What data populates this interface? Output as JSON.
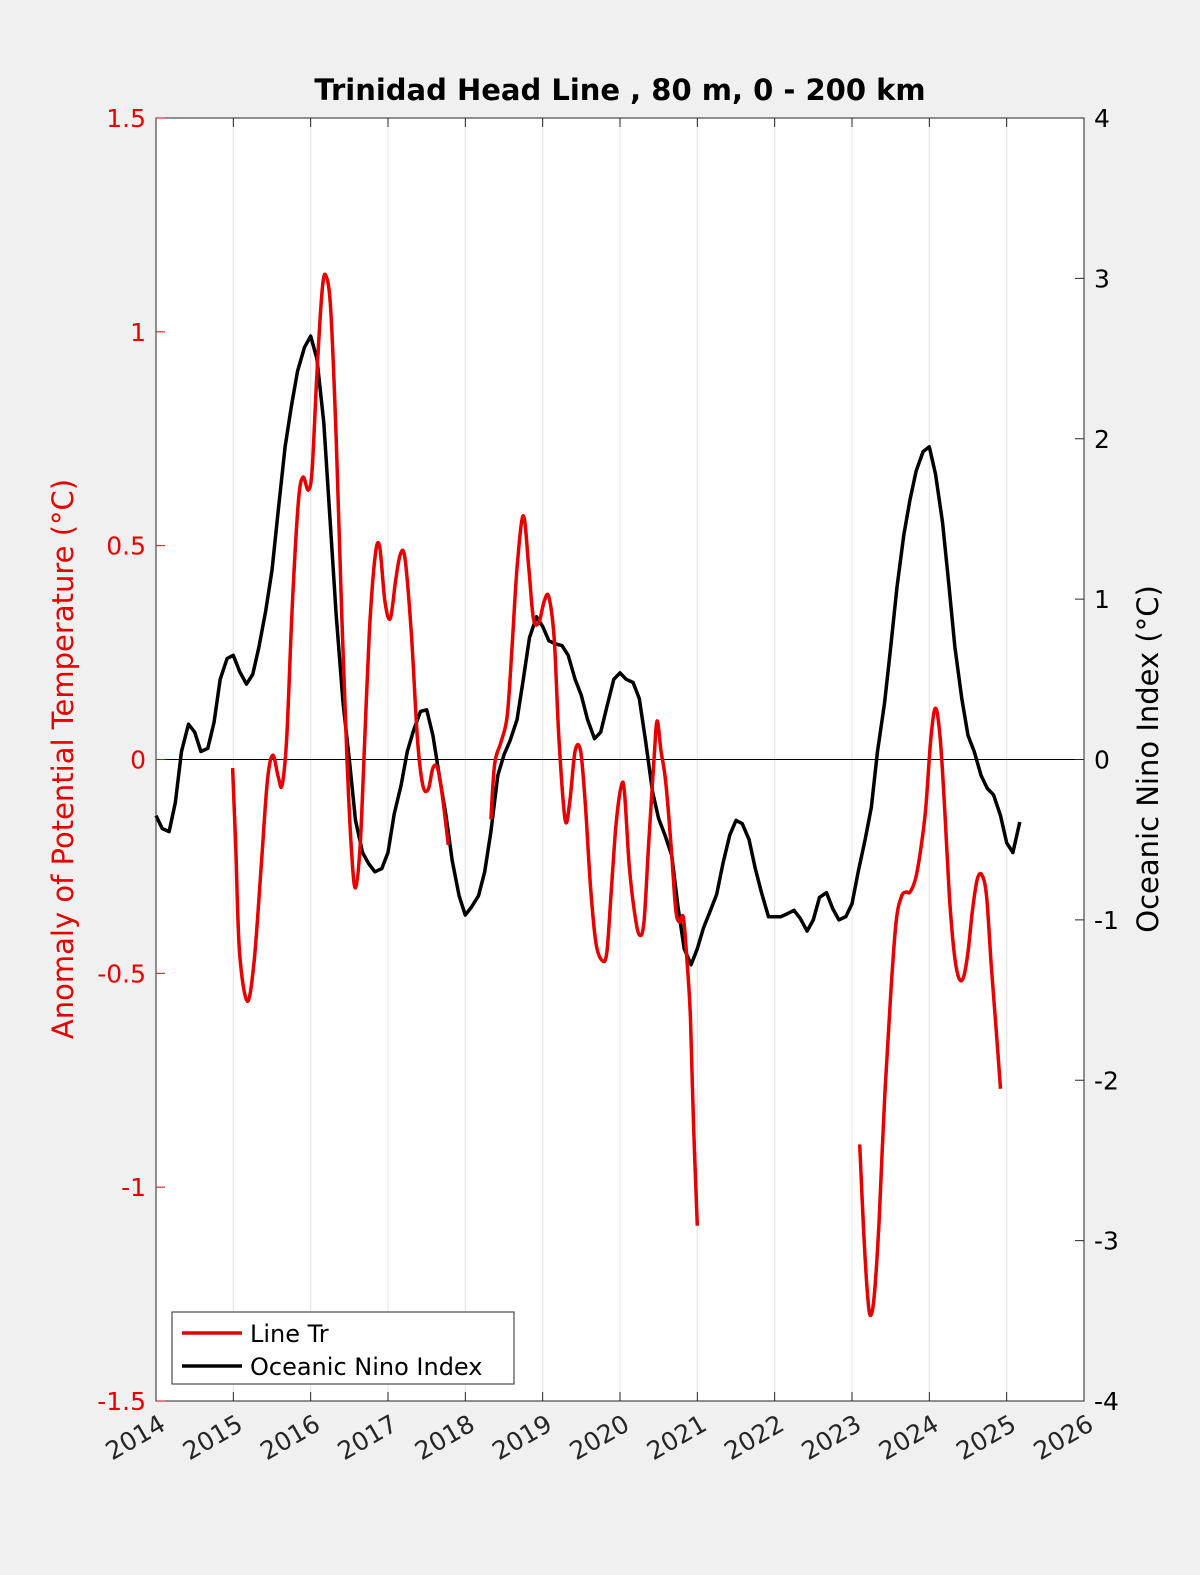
{
  "chart_data": {
    "type": "line",
    "title": "Trinidad Head Line , 80 m, 0 - 200 km",
    "xlabel": "",
    "ylabel_left": "Anomaly of Potential Temperature (°C)",
    "ylabel_right": "Oceanic Nino Index (°C)",
    "xlim": [
      2014,
      2026
    ],
    "ylim_left": [
      -1.5,
      1.5
    ],
    "ylim_right": [
      -4,
      4
    ],
    "x_ticks": [
      "2014",
      "2015",
      "2016",
      "2017",
      "2018",
      "2019",
      "2020",
      "2021",
      "2022",
      "2023",
      "2024",
      "2025",
      "2026"
    ],
    "y_ticks_left": [
      "1.5",
      "1",
      "0.5",
      "0",
      "-0.5",
      "-1",
      "-1.5"
    ],
    "y_ticks_right": [
      "4",
      "3",
      "2",
      "1",
      "0",
      "-1",
      "-2",
      "-3",
      "-4"
    ],
    "grid": "vertical",
    "legend_position": "bottom-left",
    "colors": {
      "line_tr": "#e60000",
      "oni": "#000000",
      "left_axis": "#e60000"
    },
    "series": [
      {
        "name": "Line Tr",
        "axis": "left",
        "segments": [
          [
            [
              2014.99,
              -0.02
            ],
            [
              2015.03,
              -0.2
            ],
            [
              2015.08,
              -0.45
            ],
            [
              2015.18,
              -0.565
            ],
            [
              2015.27,
              -0.47
            ],
            [
              2015.36,
              -0.25
            ],
            [
              2015.44,
              -0.05
            ],
            [
              2015.51,
              0.01
            ],
            [
              2015.58,
              -0.04
            ],
            [
              2015.63,
              -0.06
            ],
            [
              2015.69,
              0.05
            ],
            [
              2015.76,
              0.35
            ],
            [
              2015.84,
              0.6
            ],
            [
              2015.9,
              0.66
            ],
            [
              2015.97,
              0.63
            ],
            [
              2016.02,
              0.68
            ],
            [
              2016.08,
              0.9
            ],
            [
              2016.15,
              1.1
            ],
            [
              2016.2,
              1.13
            ],
            [
              2016.26,
              1.05
            ],
            [
              2016.33,
              0.75
            ],
            [
              2016.4,
              0.35
            ],
            [
              2016.47,
              0.0
            ],
            [
              2016.53,
              -0.22
            ],
            [
              2016.58,
              -0.3
            ],
            [
              2016.64,
              -0.2
            ],
            [
              2016.7,
              0.05
            ],
            [
              2016.76,
              0.3
            ],
            [
              2016.83,
              0.47
            ],
            [
              2016.89,
              0.5
            ],
            [
              2016.96,
              0.37
            ],
            [
              2017.03,
              0.33
            ],
            [
              2017.1,
              0.42
            ],
            [
              2017.16,
              0.48
            ],
            [
              2017.22,
              0.47
            ],
            [
              2017.3,
              0.3
            ],
            [
              2017.38,
              0.05
            ],
            [
              2017.45,
              -0.06
            ],
            [
              2017.52,
              -0.07
            ],
            [
              2017.58,
              -0.02
            ],
            [
              2017.64,
              -0.02
            ],
            [
              2017.7,
              -0.08
            ],
            [
              2017.78,
              -0.2
            ]
          ],
          [
            [
              2018.33,
              -0.14
            ],
            [
              2018.38,
              -0.01
            ],
            [
              2018.46,
              0.04
            ],
            [
              2018.54,
              0.1
            ],
            [
              2018.6,
              0.25
            ],
            [
              2018.67,
              0.45
            ],
            [
              2018.75,
              0.57
            ],
            [
              2018.82,
              0.45
            ],
            [
              2018.88,
              0.33
            ],
            [
              2018.95,
              0.32
            ],
            [
              2019.02,
              0.37
            ],
            [
              2019.08,
              0.38
            ],
            [
              2019.15,
              0.28
            ],
            [
              2019.21,
              0.05
            ],
            [
              2019.29,
              -0.14
            ],
            [
              2019.35,
              -0.1
            ],
            [
              2019.42,
              0.02
            ],
            [
              2019.49,
              0.02
            ],
            [
              2019.55,
              -0.1
            ],
            [
              2019.62,
              -0.3
            ],
            [
              2019.69,
              -0.43
            ],
            [
              2019.77,
              -0.47
            ],
            [
              2019.83,
              -0.45
            ],
            [
              2019.89,
              -0.3
            ],
            [
              2019.95,
              -0.15
            ],
            [
              2020.02,
              -0.06
            ],
            [
              2020.06,
              -0.08
            ],
            [
              2020.12,
              -0.25
            ],
            [
              2020.19,
              -0.36
            ],
            [
              2020.25,
              -0.41
            ],
            [
              2020.31,
              -0.38
            ],
            [
              2020.37,
              -0.2
            ],
            [
              2020.44,
              0.0
            ],
            [
              2020.48,
              0.09
            ],
            [
              2020.53,
              0.02
            ],
            [
              2020.59,
              -0.05
            ],
            [
              2020.66,
              -0.2
            ],
            [
              2020.72,
              -0.35
            ],
            [
              2020.77,
              -0.38
            ],
            [
              2020.82,
              -0.37
            ],
            [
              2020.87,
              -0.48
            ],
            [
              2020.91,
              -0.6
            ],
            [
              2020.95,
              -0.85
            ],
            [
              2021.0,
              -1.09
            ]
          ],
          [
            [
              2023.1,
              -0.9
            ],
            [
              2023.15,
              -1.1
            ],
            [
              2023.2,
              -1.25
            ],
            [
              2023.24,
              -1.3
            ],
            [
              2023.29,
              -1.25
            ],
            [
              2023.35,
              -1.08
            ],
            [
              2023.42,
              -0.8
            ],
            [
              2023.5,
              -0.55
            ],
            [
              2023.57,
              -0.38
            ],
            [
              2023.64,
              -0.32
            ],
            [
              2023.7,
              -0.31
            ],
            [
              2023.75,
              -0.31
            ],
            [
              2023.82,
              -0.28
            ],
            [
              2023.88,
              -0.22
            ],
            [
              2023.95,
              -0.12
            ],
            [
              2024.02,
              0.05
            ],
            [
              2024.08,
              0.12
            ],
            [
              2024.14,
              0.05
            ],
            [
              2024.2,
              -0.12
            ],
            [
              2024.26,
              -0.32
            ],
            [
              2024.32,
              -0.45
            ],
            [
              2024.38,
              -0.51
            ],
            [
              2024.44,
              -0.51
            ],
            [
              2024.5,
              -0.45
            ],
            [
              2024.56,
              -0.35
            ],
            [
              2024.62,
              -0.28
            ],
            [
              2024.68,
              -0.27
            ],
            [
              2024.74,
              -0.32
            ],
            [
              2024.8,
              -0.48
            ],
            [
              2024.86,
              -0.62
            ],
            [
              2024.92,
              -0.77
            ]
          ]
        ]
      },
      {
        "name": "Oceanic Nino Index",
        "axis": "right",
        "segments": [
          [
            [
              2014.0,
              -0.35
            ],
            [
              2014.08,
              -0.43
            ],
            [
              2014.17,
              -0.45
            ],
            [
              2014.25,
              -0.27
            ],
            [
              2014.33,
              0.05
            ],
            [
              2014.42,
              0.22
            ],
            [
              2014.5,
              0.17
            ],
            [
              2014.58,
              0.05
            ],
            [
              2014.67,
              0.07
            ],
            [
              2014.75,
              0.23
            ],
            [
              2014.83,
              0.5
            ],
            [
              2014.92,
              0.63
            ],
            [
              2015.0,
              0.65
            ],
            [
              2015.08,
              0.55
            ],
            [
              2015.17,
              0.47
            ],
            [
              2015.25,
              0.53
            ],
            [
              2015.33,
              0.7
            ],
            [
              2015.42,
              0.93
            ],
            [
              2015.5,
              1.18
            ],
            [
              2015.58,
              1.55
            ],
            [
              2015.67,
              1.95
            ],
            [
              2015.75,
              2.2
            ],
            [
              2015.83,
              2.42
            ],
            [
              2015.92,
              2.57
            ],
            [
              2016.0,
              2.64
            ],
            [
              2016.08,
              2.5
            ],
            [
              2016.17,
              2.1
            ],
            [
              2016.25,
              1.5
            ],
            [
              2016.33,
              0.9
            ],
            [
              2016.42,
              0.35
            ],
            [
              2016.5,
              0.0
            ],
            [
              2016.58,
              -0.38
            ],
            [
              2016.67,
              -0.58
            ],
            [
              2016.75,
              -0.65
            ],
            [
              2016.83,
              -0.7
            ],
            [
              2016.92,
              -0.68
            ],
            [
              2017.0,
              -0.58
            ],
            [
              2017.08,
              -0.34
            ],
            [
              2017.17,
              -0.16
            ],
            [
              2017.25,
              0.05
            ],
            [
              2017.33,
              0.18
            ],
            [
              2017.42,
              0.3
            ],
            [
              2017.5,
              0.31
            ],
            [
              2017.58,
              0.15
            ],
            [
              2017.67,
              -0.12
            ],
            [
              2017.75,
              -0.35
            ],
            [
              2017.83,
              -0.63
            ],
            [
              2017.92,
              -0.85
            ],
            [
              2018.0,
              -0.97
            ],
            [
              2018.08,
              -0.92
            ],
            [
              2018.17,
              -0.85
            ],
            [
              2018.25,
              -0.7
            ],
            [
              2018.33,
              -0.45
            ],
            [
              2018.42,
              -0.1
            ],
            [
              2018.5,
              0.03
            ],
            [
              2018.58,
              0.12
            ],
            [
              2018.67,
              0.25
            ],
            [
              2018.75,
              0.5
            ],
            [
              2018.83,
              0.76
            ],
            [
              2018.92,
              0.89
            ],
            [
              2019.0,
              0.83
            ],
            [
              2019.08,
              0.74
            ],
            [
              2019.17,
              0.72
            ],
            [
              2019.25,
              0.71
            ],
            [
              2019.33,
              0.65
            ],
            [
              2019.42,
              0.5
            ],
            [
              2019.5,
              0.4
            ],
            [
              2019.58,
              0.25
            ],
            [
              2019.67,
              0.13
            ],
            [
              2019.75,
              0.17
            ],
            [
              2019.83,
              0.33
            ],
            [
              2019.92,
              0.5
            ],
            [
              2020.0,
              0.54
            ],
            [
              2020.08,
              0.5
            ],
            [
              2020.17,
              0.48
            ],
            [
              2020.25,
              0.38
            ],
            [
              2020.33,
              0.12
            ],
            [
              2020.42,
              -0.2
            ],
            [
              2020.5,
              -0.37
            ],
            [
              2020.58,
              -0.47
            ],
            [
              2020.67,
              -0.6
            ],
            [
              2020.75,
              -0.92
            ],
            [
              2020.83,
              -1.18
            ],
            [
              2020.92,
              -1.28
            ],
            [
              2021.0,
              -1.18
            ],
            [
              2021.08,
              -1.05
            ],
            [
              2021.17,
              -0.94
            ],
            [
              2021.25,
              -0.84
            ],
            [
              2021.33,
              -0.65
            ],
            [
              2021.42,
              -0.47
            ],
            [
              2021.5,
              -0.38
            ],
            [
              2021.58,
              -0.4
            ],
            [
              2021.67,
              -0.5
            ],
            [
              2021.75,
              -0.68
            ],
            [
              2021.83,
              -0.83
            ],
            [
              2021.92,
              -0.98
            ],
            [
              2022.0,
              -0.98
            ],
            [
              2022.08,
              -0.98
            ],
            [
              2022.17,
              -0.96
            ],
            [
              2022.25,
              -0.94
            ],
            [
              2022.33,
              -0.99
            ],
            [
              2022.42,
              -1.07
            ],
            [
              2022.5,
              -1.0
            ],
            [
              2022.58,
              -0.86
            ],
            [
              2022.67,
              -0.83
            ],
            [
              2022.75,
              -0.93
            ],
            [
              2022.83,
              -1.0
            ],
            [
              2022.92,
              -0.98
            ],
            [
              2023.0,
              -0.9
            ],
            [
              2023.08,
              -0.7
            ],
            [
              2023.17,
              -0.5
            ],
            [
              2023.25,
              -0.3
            ],
            [
              2023.33,
              0.05
            ],
            [
              2023.42,
              0.35
            ],
            [
              2023.5,
              0.7
            ],
            [
              2023.58,
              1.07
            ],
            [
              2023.67,
              1.4
            ],
            [
              2023.75,
              1.62
            ],
            [
              2023.83,
              1.8
            ],
            [
              2023.92,
              1.92
            ],
            [
              2024.0,
              1.95
            ],
            [
              2024.08,
              1.78
            ],
            [
              2024.17,
              1.48
            ],
            [
              2024.25,
              1.1
            ],
            [
              2024.33,
              0.7
            ],
            [
              2024.42,
              0.38
            ],
            [
              2024.5,
              0.15
            ],
            [
              2024.58,
              0.05
            ],
            [
              2024.67,
              -0.1
            ],
            [
              2024.75,
              -0.18
            ],
            [
              2024.83,
              -0.22
            ],
            [
              2024.92,
              -0.35
            ],
            [
              2025.0,
              -0.52
            ],
            [
              2025.08,
              -0.58
            ],
            [
              2025.17,
              -0.39
            ]
          ]
        ]
      }
    ]
  }
}
